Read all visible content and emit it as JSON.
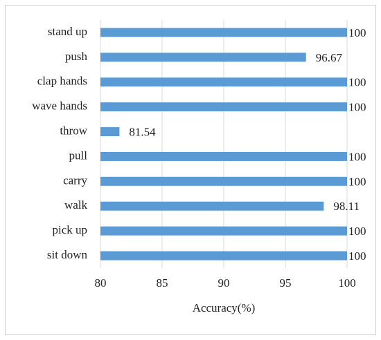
{
  "chart_data": {
    "type": "bar",
    "orientation": "horizontal",
    "categories": [
      "stand up",
      "push",
      "clap hands",
      "wave hands",
      "throw",
      "pull",
      "carry",
      "walk",
      "pick up",
      "sit down"
    ],
    "values": [
      100,
      96.67,
      100,
      100,
      81.54,
      100,
      100,
      98.11,
      100,
      100
    ],
    "color": "#5b9bd5",
    "xlabel": "Accuracy(%)",
    "xlim": [
      80,
      100
    ],
    "xticks": [
      80,
      85,
      90,
      95,
      100
    ],
    "grid": true
  }
}
